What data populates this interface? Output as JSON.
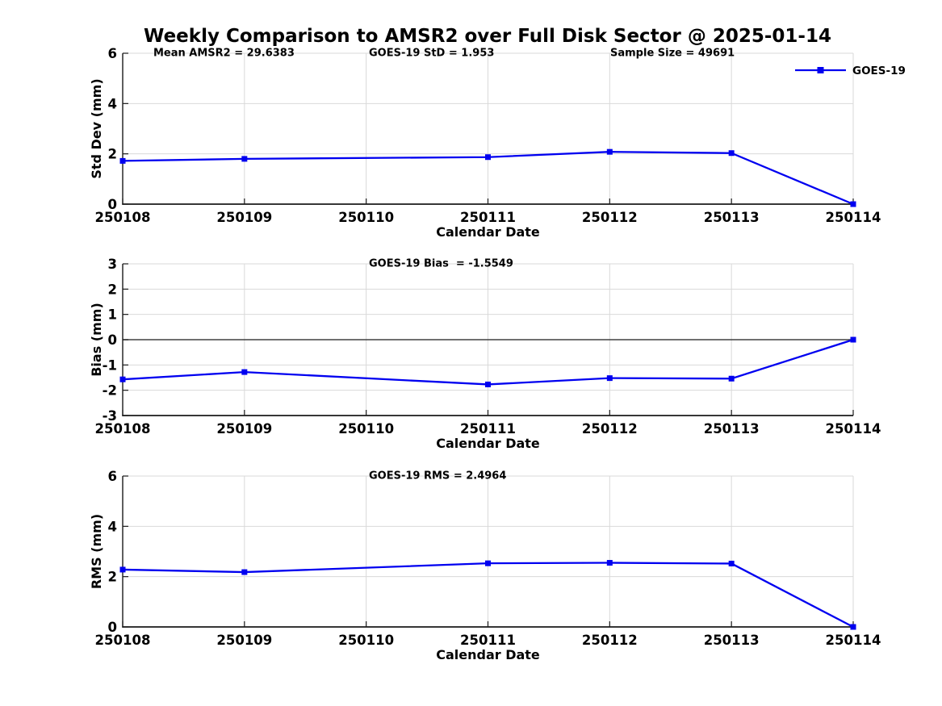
{
  "title": "Weekly Comparison to AMSR2 over Full Disk Sector @ 2025-01-14",
  "colors": {
    "series": "#0000f0",
    "grid": "#d9d9d9",
    "axis": "#1a1a1a",
    "zero_line": "#404040",
    "text": "#000000",
    "background": "#ffffff"
  },
  "legend": {
    "label": "GOES-19",
    "position": "northeast-outside",
    "marker": "filled-square"
  },
  "chart_data": [
    {
      "type": "line",
      "id": "std-dev",
      "ylabel": "Std Dev (mm)",
      "xlabel": "Calendar Date",
      "ylim": [
        0,
        6
      ],
      "yticks": [
        0,
        2,
        4,
        6
      ],
      "categories": [
        "250108",
        "250109",
        "250110",
        "250111",
        "250112",
        "250113",
        "250114"
      ],
      "grid": true,
      "annotations": [
        {
          "text": "Mean AMSR2 = 29.6383"
        },
        {
          "text": "GOES-19 StD = 1.953"
        },
        {
          "text": "Sample Size = 49691"
        }
      ],
      "series": [
        {
          "name": "GOES-19",
          "x": [
            "250108",
            "250109",
            "250111",
            "250112",
            "250113",
            "250114"
          ],
          "values": [
            1.72,
            1.8,
            1.87,
            2.08,
            2.03,
            0.0
          ]
        }
      ]
    },
    {
      "type": "line",
      "id": "bias",
      "ylabel": "Bias (mm)",
      "xlabel": "Calendar Date",
      "ylim": [
        -3,
        3
      ],
      "yticks": [
        -3,
        -2,
        -1,
        0,
        1,
        2,
        3
      ],
      "categories": [
        "250108",
        "250109",
        "250110",
        "250111",
        "250112",
        "250113",
        "250114"
      ],
      "grid": true,
      "zero_line": true,
      "annotations": [
        {
          "text": "GOES-19 Bias  = -1.5549"
        }
      ],
      "series": [
        {
          "name": "GOES-19",
          "x": [
            "250108",
            "250109",
            "250111",
            "250112",
            "250113",
            "250114"
          ],
          "values": [
            -1.57,
            -1.28,
            -1.77,
            -1.52,
            -1.54,
            0.0
          ]
        }
      ]
    },
    {
      "type": "line",
      "id": "rms",
      "ylabel": "RMS (mm)",
      "xlabel": "Calendar Date",
      "ylim": [
        0,
        6
      ],
      "yticks": [
        0,
        2,
        4,
        6
      ],
      "categories": [
        "250108",
        "250109",
        "250110",
        "250111",
        "250112",
        "250113",
        "250114"
      ],
      "grid": true,
      "annotations": [
        {
          "text": "GOES-19 RMS = 2.4964"
        }
      ],
      "series": [
        {
          "name": "GOES-19",
          "x": [
            "250108",
            "250109",
            "250111",
            "250112",
            "250113",
            "250114"
          ],
          "values": [
            2.28,
            2.18,
            2.53,
            2.55,
            2.52,
            0.0
          ]
        }
      ]
    }
  ]
}
